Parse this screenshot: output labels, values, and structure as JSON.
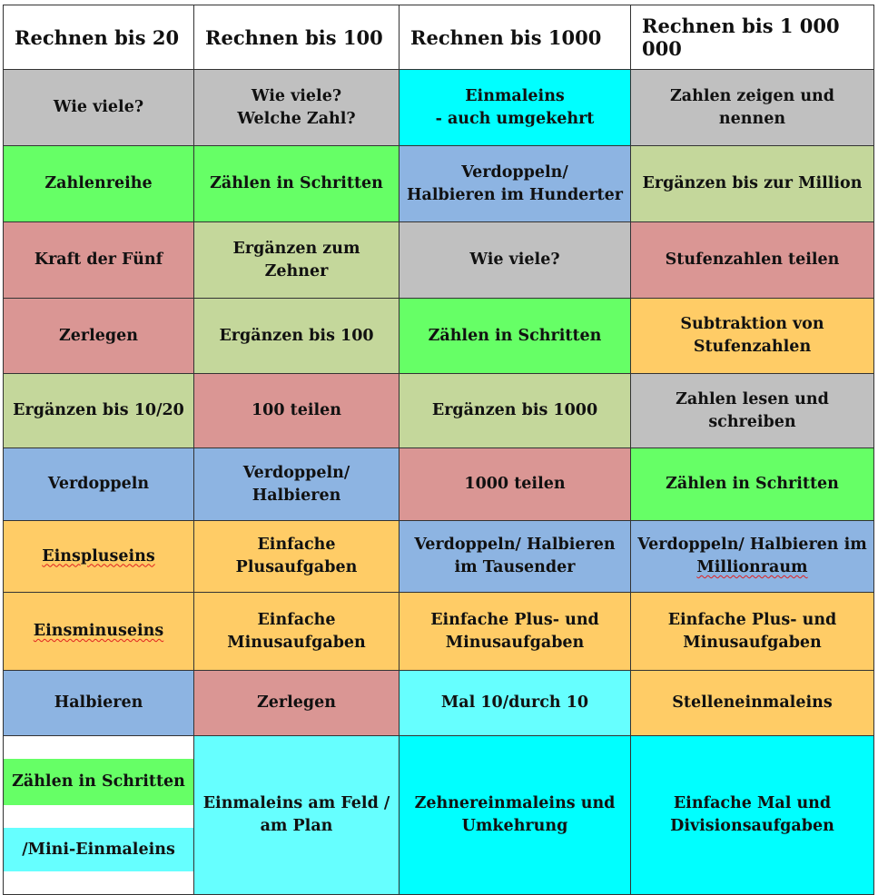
{
  "headers": [
    "Rechnen bis 20",
    "Rechnen bis 100",
    "Rechnen bis 1000",
    "Rechnen bis 1 000 000"
  ],
  "rows": [
    [
      "Wie viele?",
      "Wie viele?\nWelche Zahl?",
      "Einmaleins\n -  auch umgekehrt",
      "Zahlen zeigen und nennen"
    ],
    [
      "Zahlenreihe",
      "Zählen in Schritten",
      "Verdoppeln/\nHalbieren im Hunderter",
      "Ergänzen bis zur Million"
    ],
    [
      "Kraft der Fünf",
      "Ergänzen zum\nZehner",
      "Wie viele?",
      "Stufenzahlen teilen"
    ],
    [
      "Zerlegen",
      "Ergänzen bis 100",
      "Zählen in Schritten",
      "Subtraktion  von\nStufenzahlen"
    ],
    [
      "Ergänzen bis 10/20",
      "100 teilen",
      "Ergänzen bis 1000",
      "Zahlen lesen und\nschreiben"
    ],
    [
      "Verdoppeln",
      "Verdoppeln/\nHalbieren",
      "1000 teilen",
      "Zählen in Schritten"
    ],
    [
      "Einspluseins",
      "Einfache\nPlusaufgaben",
      "Verdoppeln/ Halbieren\nim Tausender",
      "Verdoppeln/ Halbieren im\n"
    ],
    [
      "Einsminuseins",
      "Einfache\nMinusaufgaben",
      "Einfache Plus- und\nMinusaufgaben",
      "Einfache Plus- und\nMinusaufgaben"
    ],
    [
      "Halbieren",
      "Zerlegen",
      "Mal 10/durch 10",
      "Stelleneinmaleins"
    ],
    [
      "",
      "Einmaleins am Feld /\nam Plan",
      "Zehnereinmaleins und\nUmkehrung",
      "Einfache Mal und\nDivisionsaufgaben"
    ]
  ],
  "misspelled_word": "Millionraum",
  "split_cell": {
    "top": "Zählen in  Schritten",
    "bottom": "/Mini-Einmaleins"
  },
  "colors": {
    "gray": "#c0c0c0",
    "cyan": "#00ffff",
    "light_cyan": "#66ffff",
    "green": "#66ff66",
    "sage": "#c4d79b",
    "rose": "#da9694",
    "blue": "#8db4e2",
    "orange": "#ffcc66"
  }
}
